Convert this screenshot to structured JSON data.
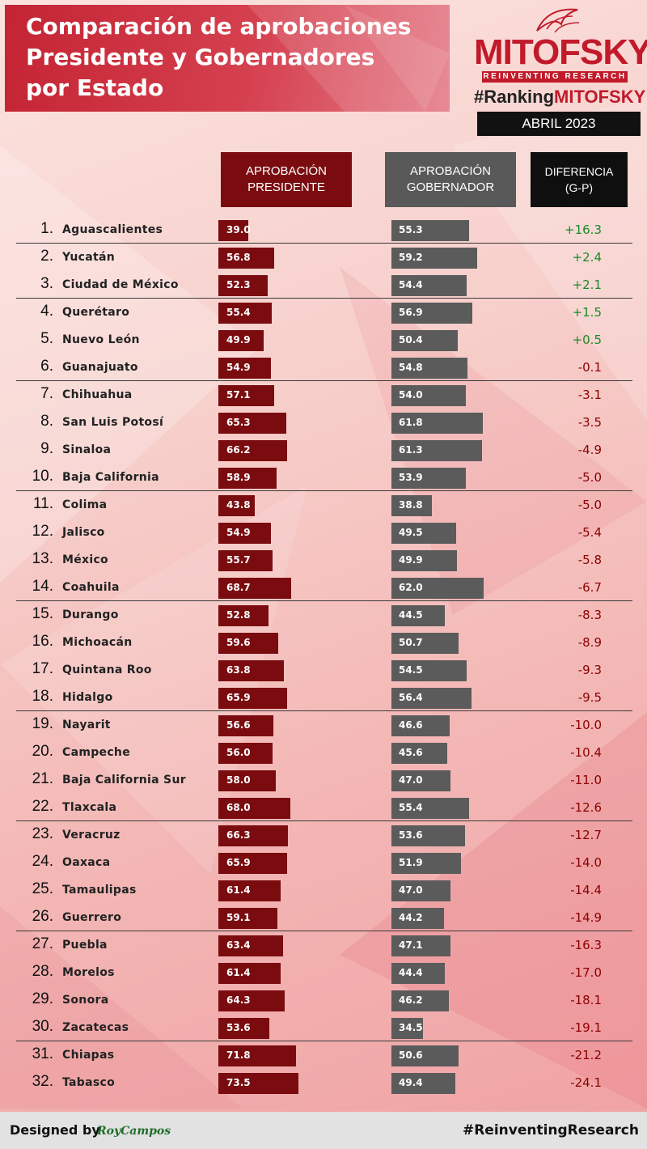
{
  "header": {
    "title_lines": [
      "Comparación de aprobaciones",
      "Presidente y Gobernadores",
      "por Estado"
    ],
    "brand": "MITOFSKY",
    "brand_tagline": "REINVENTING RESEARCH",
    "ranking_prefix": "#Ranking",
    "ranking_brand": "MITOFSKY",
    "date": "ABRIL 2023"
  },
  "columns": {
    "president": "APROBACIÓN\nPRESIDENTE",
    "governor": "APROBACIÓN\nGOBERNADOR",
    "difference": "DIFERENCIA\n(G-P)"
  },
  "chart_data": {
    "type": "bar",
    "orientation": "horizontal",
    "categories": [
      "Aguascalientes",
      "Yucatán",
      "Ciudad de México",
      "Querétaro",
      "Nuevo León",
      "Guanajuato",
      "Chihuahua",
      "San Luis Potosí",
      "Sinaloa",
      "Baja California",
      "Colima",
      "Jalisco",
      "México",
      "Coahuila",
      "Durango",
      "Michoacán",
      "Quintana Roo",
      "Hidalgo",
      "Nayarit",
      "Campeche",
      "Baja California Sur",
      "Tlaxcala",
      "Veracruz",
      "Oaxaca",
      "Tamaulipas",
      "Guerrero",
      "Puebla",
      "Morelos",
      "Sonora",
      "Zacatecas",
      "Chiapas",
      "Tabasco"
    ],
    "ranks": [
      "1.",
      "2.",
      "3.",
      "4.",
      "5.",
      "6.",
      "7.",
      "8.",
      "9.",
      "10.",
      "11.",
      "12.",
      "13.",
      "14.",
      "15.",
      "16.",
      "17.",
      "18.",
      "19.",
      "20.",
      "21.",
      "22.",
      "23.",
      "24.",
      "25.",
      "26.",
      "27.",
      "28.",
      "29.",
      "30.",
      "31.",
      "32."
    ],
    "series": [
      {
        "name": "APROBACIÓN PRESIDENTE",
        "color": "#7a0c10",
        "values": [
          39.0,
          56.8,
          52.3,
          55.4,
          49.9,
          54.9,
          57.1,
          65.3,
          66.2,
          58.9,
          43.8,
          54.9,
          55.7,
          68.7,
          52.8,
          59.6,
          63.8,
          65.9,
          56.6,
          56.0,
          58.0,
          68.0,
          66.3,
          65.9,
          61.4,
          59.1,
          63.4,
          61.4,
          64.3,
          53.6,
          71.8,
          73.5
        ]
      },
      {
        "name": "APROBACIÓN GOBERNADOR",
        "color": "#5b5b5b",
        "values": [
          55.3,
          59.2,
          54.4,
          56.9,
          50.4,
          54.8,
          54.0,
          61.8,
          61.3,
          53.9,
          38.8,
          49.5,
          49.9,
          62.0,
          44.5,
          50.7,
          54.5,
          56.4,
          46.6,
          45.6,
          47.0,
          55.4,
          53.6,
          51.9,
          47.0,
          44.2,
          47.1,
          44.4,
          46.2,
          34.5,
          50.6,
          49.4
        ]
      }
    ],
    "difference": [
      "+16.3",
      "+2.4",
      "+2.1",
      "+1.5",
      "+0.5",
      "-0.1",
      "-3.1",
      "-3.5",
      "-4.9",
      "-5.0",
      "-5.0",
      "-5.4",
      "-5.8",
      "-6.7",
      "-8.3",
      "-8.9",
      "-9.3",
      "-9.5",
      "-10.0",
      "-10.4",
      "-11.0",
      "-12.6",
      "-12.7",
      "-14.0",
      "-14.4",
      "-14.9",
      "-16.3",
      "-17.0",
      "-18.1",
      "-19.1",
      "-21.2",
      "-24.1"
    ],
    "positive_color": "#1a8a2a",
    "negative_color": "#8b0000"
  },
  "footer": {
    "designed_by": "Designed by",
    "designer": "RoyCampos",
    "hashtag": "#ReinventingResearch"
  }
}
